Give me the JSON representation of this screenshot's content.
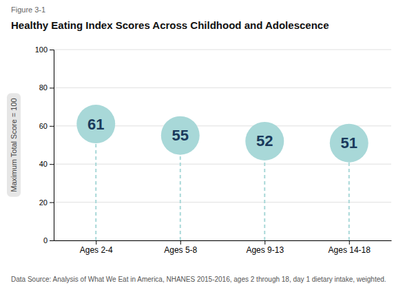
{
  "chart_data": {
    "type": "dot",
    "title": "Healthy Eating Index Scores Across Childhood and Adolescence",
    "annotations": [
      "Figure 3-1",
      "Data Source: Analysis of What We Eat in America, NHANES 2015-2016, ages 2 through 18, day 1 dietary intake, weighted."
    ],
    "y_label": "Maximum Total Score = 100",
    "categories": [
      "Ages 2-4",
      "Ages 5-8",
      "Ages 9-13",
      "Ages 14-18"
    ],
    "values": [
      61,
      55,
      52,
      51
    ],
    "color": "#a8d8d8",
    "ylim": [
      0,
      100
    ],
    "yticks": [
      0,
      20,
      40,
      60,
      80,
      100
    ],
    "grid": true,
    "data_labels": true
  }
}
